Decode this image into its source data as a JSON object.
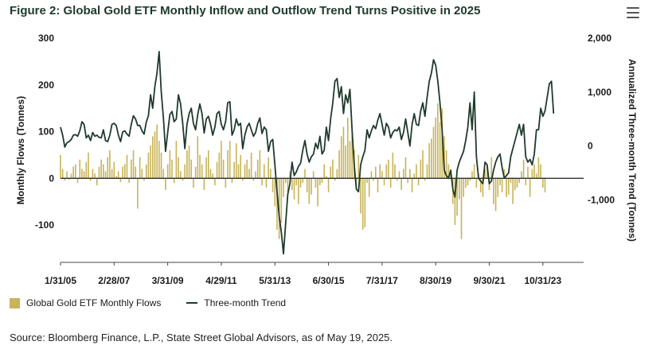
{
  "title": "Figure 2: Global Gold ETF Monthly Inflow and Outflow Trend Turns Positive in 2025",
  "menu_icon": "hamburger-menu-icon",
  "source": "Source: Bloomberg Finance, L.P., State Street Global Advisors, as of May 19, 2025.",
  "colors": {
    "bars": "#c8b45a",
    "line": "#1f3a2c",
    "zero": "#1a1a1a"
  },
  "chart_data": {
    "type": "bar",
    "xlabel": "",
    "y_left": {
      "label": "Monthly Flows (Tonnes)",
      "lim": [
        -180,
        300
      ],
      "ticks": [
        "300",
        "200",
        "100",
        "0",
        "-100"
      ],
      "tick_values": [
        300,
        200,
        100,
        0,
        -100
      ]
    },
    "y_right": {
      "label": "Annualized Three-month Trend (Tonnes)",
      "lim": [
        -2160,
        2000
      ],
      "ticks": [
        "2,000",
        "1,000",
        "0",
        "-1,000"
      ],
      "tick_values": [
        2000,
        1000,
        0,
        -1000
      ]
    },
    "x_ticks": [
      "1/31/05",
      "2/28/07",
      "3/31/09",
      "4/29/11",
      "5/31/13",
      "6/30/15",
      "7/31/17",
      "8/30/19",
      "9/30/21",
      "10/31/23"
    ],
    "x_tick_months": [
      0,
      25,
      50,
      75,
      100,
      125,
      150,
      175,
      200,
      225
    ],
    "x_range_months": [
      0,
      244
    ],
    "legend": {
      "placement": "bottom-left",
      "bars_label": "Global Gold ETF Monthly Flows",
      "line_label": "Three-month Trend"
    },
    "series": [
      {
        "name": "Global Gold ETF Monthly Flows",
        "type": "bar",
        "axis": "left",
        "values": [
          50,
          20,
          -5,
          15,
          -3,
          10,
          25,
          30,
          -10,
          40,
          20,
          15,
          35,
          55,
          -5,
          20,
          10,
          -15,
          25,
          40,
          30,
          15,
          45,
          60,
          20,
          35,
          5,
          15,
          -8,
          25,
          30,
          50,
          -10,
          40,
          60,
          25,
          -65,
          45,
          20,
          -5,
          30,
          55,
          70,
          90,
          100,
          115,
          80,
          55,
          20,
          -25,
          30,
          60,
          40,
          -10,
          80,
          45,
          15,
          -5,
          30,
          60,
          70,
          40,
          -20,
          25,
          90,
          50,
          30,
          -25,
          45,
          60,
          20,
          10,
          -15,
          35,
          55,
          80,
          40,
          -20,
          60,
          80,
          -10,
          35,
          75,
          30,
          50,
          -5,
          30,
          40,
          20,
          55,
          -5,
          15,
          40,
          60,
          -15,
          30,
          -20,
          45,
          20,
          -30,
          -60,
          -110,
          -130,
          -95,
          -40,
          -10,
          -30,
          15,
          -25,
          -45,
          -15,
          -55,
          -20,
          -10,
          20,
          -30,
          -55,
          -35,
          15,
          -20,
          -60,
          -15,
          -10,
          30,
          5,
          -30,
          25,
          40,
          -5,
          20,
          60,
          90,
          110,
          70,
          130,
          80,
          100,
          60,
          -20,
          50,
          -75,
          -110,
          -105,
          -10,
          -40,
          15,
          -5,
          25,
          -30,
          30,
          15,
          -15,
          30,
          40,
          -20,
          55,
          30,
          -5,
          15,
          -25,
          20,
          45,
          -10,
          20,
          -30,
          10,
          30,
          -15,
          40,
          60,
          -5,
          30,
          75,
          85,
          110,
          130,
          160,
          120,
          150,
          90,
          60,
          30,
          10,
          -55,
          -100,
          -80,
          -45,
          -130,
          -40,
          -20,
          -15,
          -5,
          15,
          30,
          -20,
          10,
          -30,
          -40,
          20,
          30,
          -25,
          45,
          -55,
          -70,
          -40,
          -15,
          -30,
          20,
          -40,
          -35,
          -10,
          -55,
          -25,
          -20,
          -10,
          15,
          40,
          -15,
          25,
          -40,
          20,
          30,
          10,
          45,
          30,
          -20,
          -30
        ]
      },
      {
        "name": "Three-month Trend",
        "type": "line",
        "axis": "right",
        "values": [
          350,
          200,
          -20,
          60,
          80,
          120,
          200,
          210,
          180,
          280,
          450,
          400,
          150,
          200,
          100,
          250,
          180,
          200,
          160,
          150,
          300,
          100,
          80,
          200,
          400,
          420,
          380,
          200,
          80,
          260,
          280,
          220,
          180,
          400,
          560,
          500,
          380,
          380,
          280,
          220,
          440,
          560,
          950,
          700,
          1100,
          1350,
          1750,
          1000,
          520,
          -100,
          250,
          580,
          640,
          450,
          500,
          950,
          780,
          420,
          -50,
          400,
          600,
          700,
          420,
          300,
          580,
          780,
          600,
          240,
          500,
          550,
          400,
          200,
          350,
          600,
          640,
          400,
          300,
          450,
          800,
          820,
          200,
          300,
          500,
          380,
          420,
          -50,
          200,
          350,
          420,
          300,
          180,
          250,
          420,
          520,
          230,
          350,
          300,
          -100,
          80,
          120,
          -350,
          -850,
          -1300,
          -1600,
          -2000,
          -1450,
          -900,
          -700,
          -300,
          -550,
          -480,
          -380,
          -320,
          -80,
          100,
          -150,
          -300,
          -200,
          -150,
          50,
          -50,
          180,
          -150,
          -80,
          350,
          100,
          500,
          800,
          1200,
          1250,
          900,
          1100,
          600,
          950,
          800,
          1050,
          300,
          -350,
          -800,
          -850,
          -350,
          -200,
          -80,
          300,
          150,
          280,
          380,
          320,
          480,
          600,
          400,
          200,
          420,
          350,
          150,
          250,
          300,
          280,
          350,
          120,
          250,
          500,
          250,
          0,
          400,
          600,
          400,
          380,
          650,
          800,
          550,
          900,
          1200,
          1350,
          1600,
          1500,
          1200,
          800,
          300,
          -450,
          -550,
          -600,
          -450,
          -800,
          -950,
          -450,
          -300,
          -200,
          -100,
          100,
          350,
          800,
          300,
          1000,
          -200,
          -600,
          -650,
          -700,
          -300,
          -350,
          -700,
          -650,
          -450,
          -300,
          -200,
          -150,
          -400,
          -600,
          -550,
          -500,
          -200,
          -50,
          100,
          250,
          400,
          200,
          400,
          -200,
          -300,
          -250,
          -350,
          -150,
          300,
          300,
          700,
          550,
          650,
          900,
          1150,
          1200,
          600
        ]
      }
    ]
  }
}
